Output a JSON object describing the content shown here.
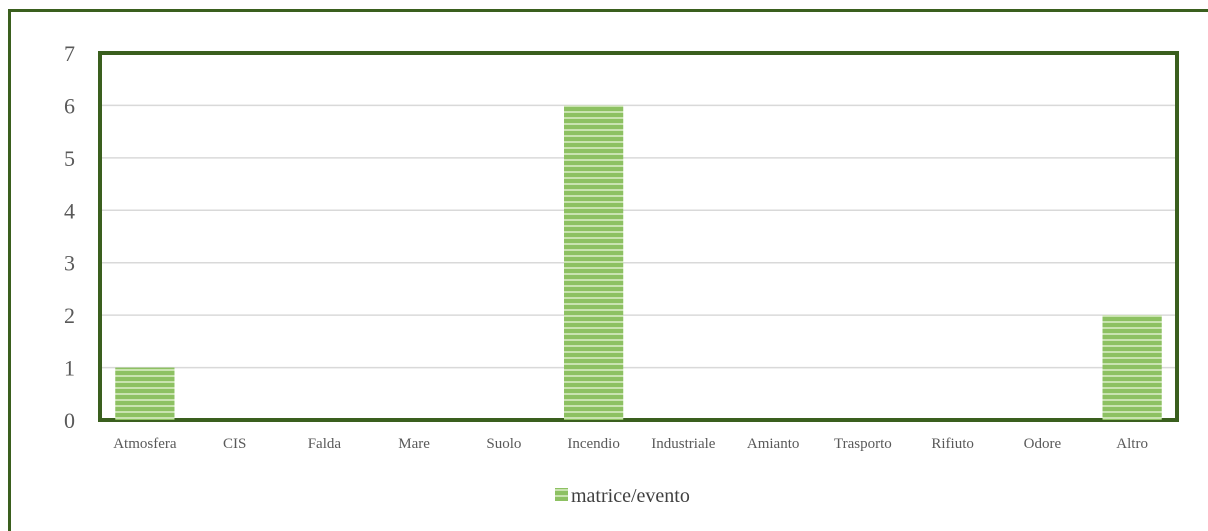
{
  "chart_data": {
    "type": "bar",
    "categories": [
      "Atmosfera",
      "CIS",
      "Falda",
      "Mare",
      "Suolo",
      "Incendio",
      "Industriale",
      "Amianto",
      "Trasporto",
      "Rifiuto",
      "Odore",
      "Altro"
    ],
    "series": [
      {
        "name": "matrice/evento",
        "values": [
          1,
          0,
          0,
          0,
          0,
          6,
          0,
          0,
          0,
          0,
          0,
          2
        ]
      }
    ],
    "title": "",
    "xlabel": "",
    "ylabel": "",
    "ylim": [
      0,
      7
    ],
    "yticks": [
      "0",
      "1",
      "2",
      "3",
      "4",
      "5",
      "6",
      "7"
    ],
    "grid": true,
    "legend_position": "bottom",
    "colors": {
      "bar": "#8dc162",
      "bar_stripe": "#c9e3b0",
      "plot_border": "#3a5f1e",
      "grid": "#d9d9d9"
    }
  }
}
